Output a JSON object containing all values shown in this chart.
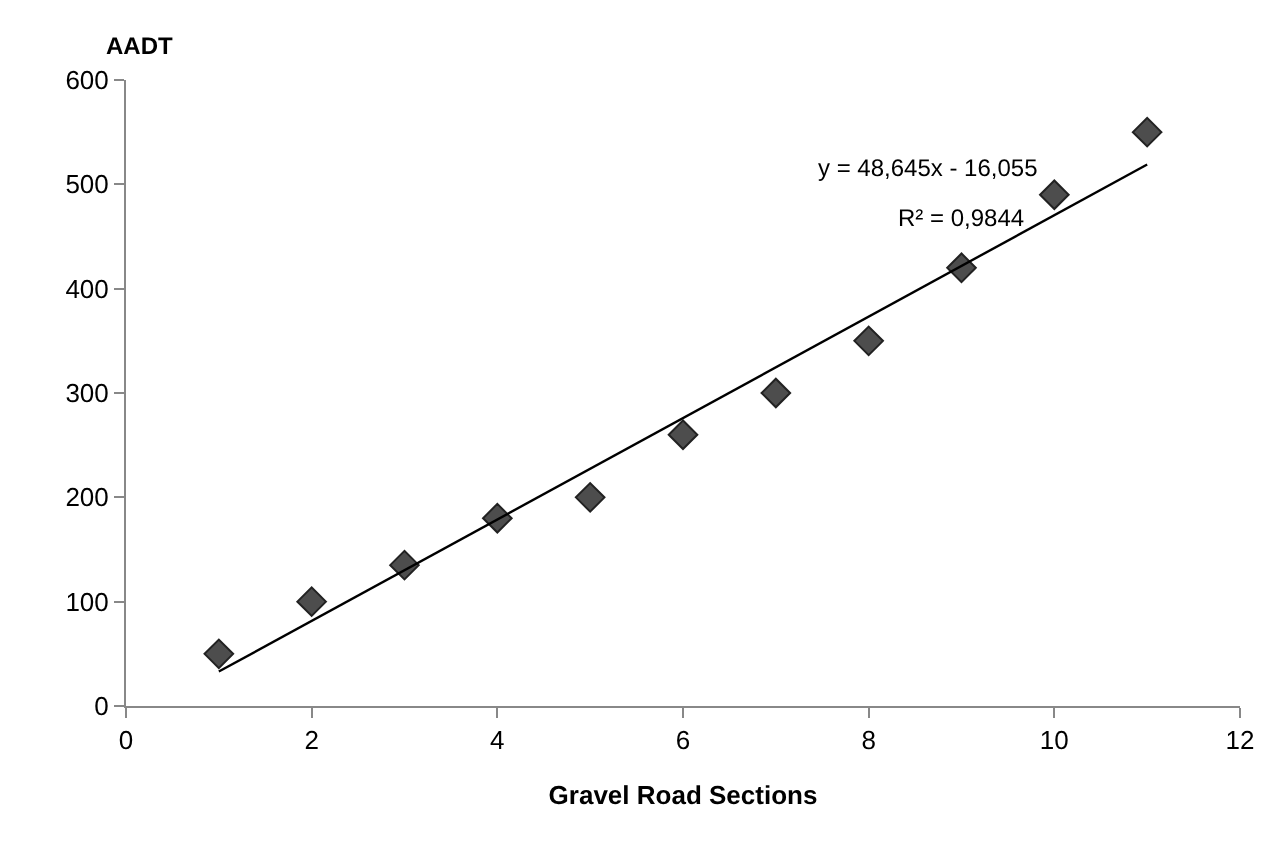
{
  "chart_data": {
    "type": "scatter",
    "xlabel": "Gravel Road Sections",
    "ylabel": "AADT",
    "x": [
      1,
      2,
      3,
      4,
      5,
      6,
      7,
      8,
      9,
      10,
      11
    ],
    "series": [
      {
        "color": "#4d4d4d",
        "marker": "diamond",
        "values": [
          50,
          100,
          135,
          180,
          200,
          260,
          300,
          350,
          420,
          490,
          550
        ]
      },
      {
        "type": "line",
        "color": "#000000",
        "marker": "none",
        "x": [
          1,
          11
        ],
        "values": [
          33,
          519
        ]
      }
    ],
    "annotations": [
      "y = 48,645x - 16,055",
      "R² = 0,9844"
    ],
    "xlim": [
      0,
      12
    ],
    "xticks": [
      0,
      2,
      4,
      6,
      8,
      10,
      12
    ],
    "ylim": [
      0,
      600
    ],
    "yticks": [
      0,
      100,
      200,
      300,
      400,
      500,
      600
    ],
    "grid": false
  }
}
